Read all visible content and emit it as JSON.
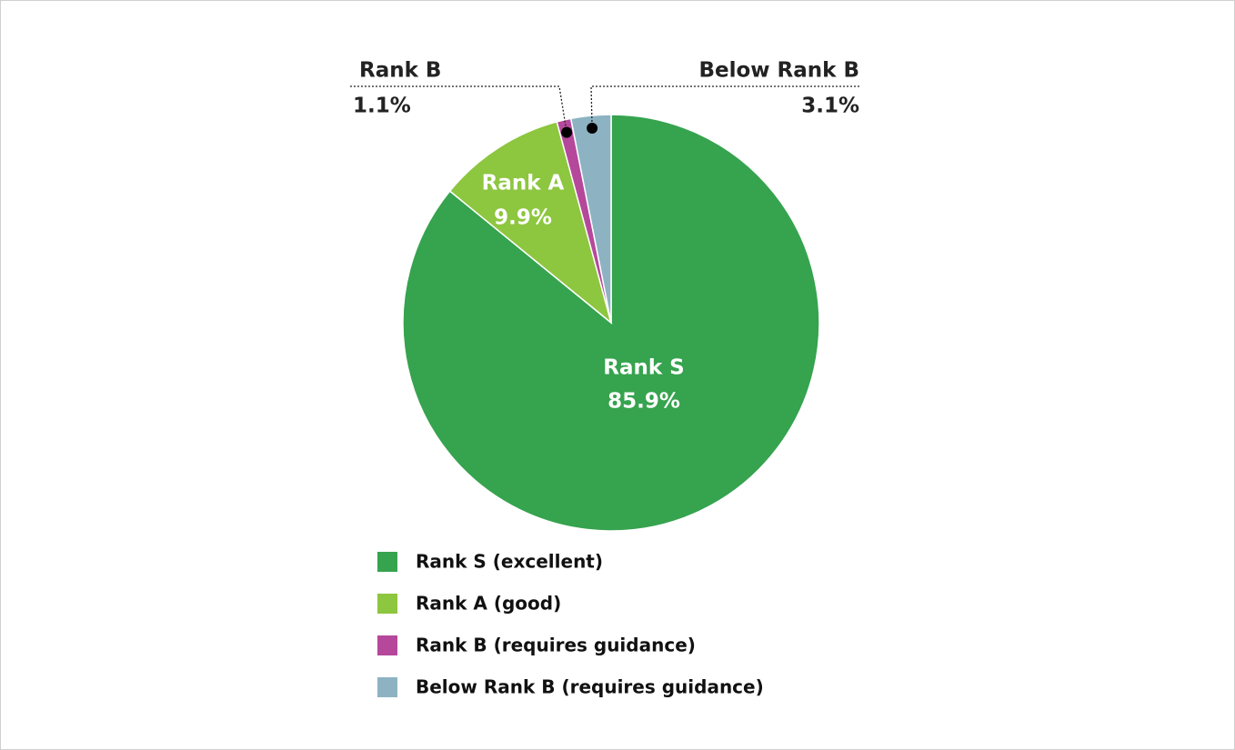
{
  "chart_data": {
    "type": "pie",
    "categories": [
      "Rank S (excellent)",
      "Rank A (good)",
      "Rank B (requires guidance)",
      "Below Rank B (requires guidance)"
    ],
    "slice_labels": [
      "Rank S",
      "Rank A",
      "Rank B",
      "Below Rank B"
    ],
    "values": [
      85.9,
      9.9,
      1.1,
      3.1
    ],
    "value_labels": [
      "85.9%",
      "9.9%",
      "1.1%",
      "3.1%"
    ],
    "colors": [
      "#36a34e",
      "#8dc63f",
      "#b5489b",
      "#8db3c2"
    ]
  }
}
